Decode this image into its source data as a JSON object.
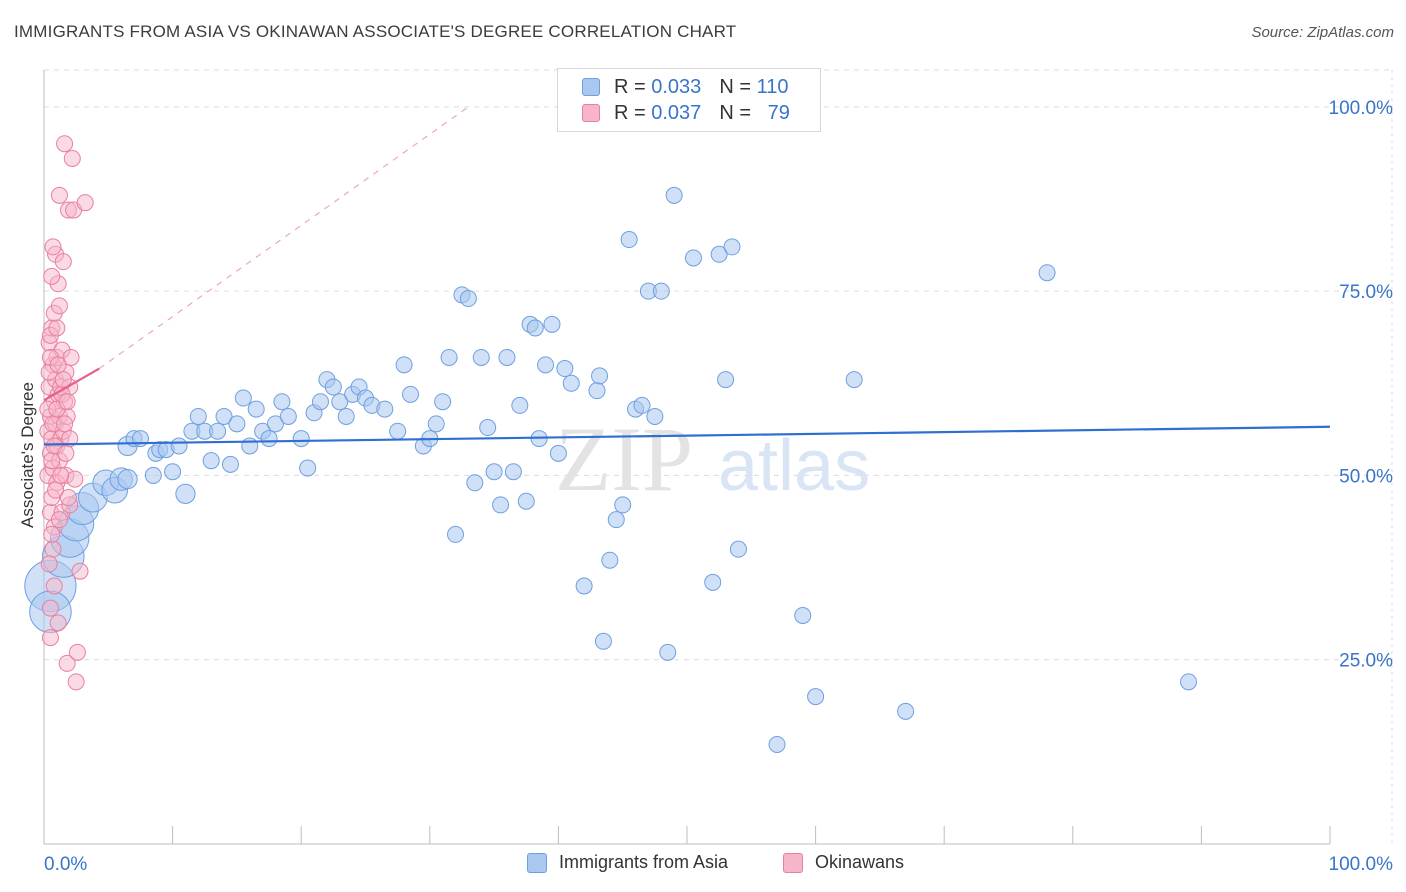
{
  "title": "IMMIGRANTS FROM ASIA VS OKINAWAN ASSOCIATE'S DEGREE CORRELATION CHART",
  "source": "Source: ZipAtlas.com",
  "colors": {
    "blue_fill": "#a9c8f0",
    "blue_stroke": "#6e9fe0",
    "blue_line": "#2e6fd0",
    "pink_fill": "#f5b6c9",
    "pink_stroke": "#ea7fa0",
    "pink_line": "#e8608a",
    "tick_text": "#3a74c9",
    "grid": "#dcdcdc"
  },
  "legend_top": {
    "rows": [
      {
        "series": "Immigrants from Asia",
        "r_label": "R =",
        "r_value": "0.033",
        "n_label": "N =",
        "n_value": "110"
      },
      {
        "series": "Okinawans",
        "r_label": "R =",
        "r_value": "0.037",
        "n_label": "N =",
        "n_value": "79"
      }
    ]
  },
  "legend_bottom": [
    "Immigrants from Asia",
    "Okinawans"
  ],
  "watermark": {
    "zip": "ZIP",
    "atlas": "atlas"
  },
  "chart_data": {
    "type": "scatter",
    "title": "IMMIGRANTS FROM ASIA VS OKINAWAN ASSOCIATE'S DEGREE CORRELATION CHART",
    "xlabel": "",
    "ylabel": "Associate's Degree",
    "xlim": [
      0,
      100
    ],
    "ylim": [
      0,
      105
    ],
    "x_tick_labels": [
      "0.0%",
      "100.0%"
    ],
    "y_ticks": [
      25,
      50,
      75,
      100
    ],
    "y_tick_labels": [
      "25.0%",
      "50.0%",
      "75.0%",
      "100.0%"
    ],
    "grid": true,
    "series": [
      {
        "name": "Immigrants from Asia",
        "R": 0.033,
        "N": 110,
        "trend": {
          "x0": 0,
          "y0": 54.2,
          "x1": 100,
          "y1": 56.6
        },
        "points": [
          [
            0.5,
            35,
            3.2
          ],
          [
            0.5,
            31.5,
            2.6
          ],
          [
            1.5,
            39,
            2.6
          ],
          [
            2,
            41.5,
            2.4
          ],
          [
            2.5,
            43.5,
            2.2
          ],
          [
            3,
            45.5,
            2.0
          ],
          [
            3.8,
            47,
            1.8
          ],
          [
            4.8,
            49,
            1.6
          ],
          [
            5.5,
            48,
            1.6
          ],
          [
            6,
            49.5,
            1.4
          ],
          [
            6.5,
            49.5,
            1.2
          ],
          [
            6.5,
            54,
            1.2
          ],
          [
            7,
            55,
            1.0
          ],
          [
            7.5,
            55,
            1.0
          ],
          [
            8.5,
            50,
            1.0
          ],
          [
            8.7,
            53,
            1.0
          ],
          [
            9,
            53.5,
            1.0
          ],
          [
            9.5,
            53.5,
            1.0
          ],
          [
            10,
            50.5,
            1.0
          ],
          [
            10.5,
            54,
            1.0
          ],
          [
            11,
            47.5,
            1.2
          ],
          [
            11.5,
            56,
            1.0
          ],
          [
            12,
            58,
            1.0
          ],
          [
            12.5,
            56,
            1.0
          ],
          [
            13,
            52,
            1.0
          ],
          [
            13.5,
            56,
            1.0
          ],
          [
            14,
            58,
            1.0
          ],
          [
            14.5,
            51.5,
            1.0
          ],
          [
            15,
            57,
            1.0
          ],
          [
            15.5,
            60.5,
            1.0
          ],
          [
            16,
            54,
            1.0
          ],
          [
            16.5,
            59,
            1.0
          ],
          [
            17,
            56,
            1.0
          ],
          [
            17.5,
            55,
            1.0
          ],
          [
            18,
            57,
            1.0
          ],
          [
            18.5,
            60,
            1.0
          ],
          [
            19,
            58,
            1.0
          ],
          [
            20,
            55,
            1.0
          ],
          [
            20.5,
            51,
            1.0
          ],
          [
            21,
            58.5,
            1.0
          ],
          [
            21.5,
            60,
            1.0
          ],
          [
            22,
            63,
            1.0
          ],
          [
            22.5,
            62,
            1.0
          ],
          [
            23,
            60,
            1.0
          ],
          [
            23.5,
            58,
            1.0
          ],
          [
            24,
            61,
            1.0
          ],
          [
            24.5,
            62,
            1.0
          ],
          [
            25,
            60.5,
            1.0
          ],
          [
            25.5,
            59.5,
            1.0
          ],
          [
            26.5,
            59,
            1.0
          ],
          [
            27.5,
            56,
            1.0
          ],
          [
            28,
            65,
            1.0
          ],
          [
            28.5,
            61,
            1.0
          ],
          [
            29.5,
            54,
            1.0
          ],
          [
            30,
            55,
            1.0
          ],
          [
            30.5,
            57,
            1.0
          ],
          [
            31,
            60,
            1.0
          ],
          [
            31.5,
            66,
            1.0
          ],
          [
            32,
            42,
            1.0
          ],
          [
            32.5,
            74.5,
            1.0
          ],
          [
            33,
            74,
            1.0
          ],
          [
            33.5,
            49,
            1.0
          ],
          [
            34,
            66,
            1.0
          ],
          [
            34.5,
            56.5,
            1.0
          ],
          [
            35,
            50.5,
            1.0
          ],
          [
            35.5,
            46,
            1.0
          ],
          [
            36,
            66,
            1.0
          ],
          [
            36.5,
            50.5,
            1.0
          ],
          [
            37,
            59.5,
            1.0
          ],
          [
            37.5,
            46.5,
            1.0
          ],
          [
            37.8,
            70.5,
            1.0
          ],
          [
            38.2,
            70,
            1.0
          ],
          [
            38.5,
            55,
            1.0
          ],
          [
            39,
            65,
            1.0
          ],
          [
            39.5,
            70.5,
            1.0
          ],
          [
            40,
            53,
            1.0
          ],
          [
            40.5,
            64.5,
            1.0
          ],
          [
            41,
            62.5,
            1.0
          ],
          [
            42,
            35,
            1.0
          ],
          [
            43,
            61.5,
            1.0
          ],
          [
            43.2,
            63.5,
            1.0
          ],
          [
            43.5,
            27.5,
            1.0
          ],
          [
            44,
            38.5,
            1.0
          ],
          [
            44.5,
            44,
            1.0
          ],
          [
            45,
            46,
            1.0
          ],
          [
            45.5,
            82,
            1.0
          ],
          [
            46,
            59,
            1.0
          ],
          [
            46.5,
            59.5,
            1.0
          ],
          [
            47,
            75,
            1.0
          ],
          [
            47.5,
            58,
            1.0
          ],
          [
            48,
            75,
            1.0
          ],
          [
            48.5,
            26,
            1.0
          ],
          [
            49,
            88,
            1.0
          ],
          [
            50.5,
            79.5,
            1.0
          ],
          [
            52,
            35.5,
            1.0
          ],
          [
            52.5,
            80,
            1.0
          ],
          [
            53,
            63,
            1.0
          ],
          [
            53.5,
            81,
            1.0
          ],
          [
            54,
            40,
            1.0
          ],
          [
            57,
            13.5,
            1.0
          ],
          [
            59,
            31,
            1.0
          ],
          [
            60,
            20,
            1.0
          ],
          [
            63,
            63,
            1.0
          ],
          [
            67,
            18,
            1.0
          ],
          [
            78,
            77.5,
            1.0
          ],
          [
            89,
            22,
            1.0
          ]
        ]
      },
      {
        "name": "Okinawans",
        "R": 0.037,
        "N": 79,
        "trend": {
          "x0": 0,
          "y0": 60.2,
          "x1": 4.3,
          "y1": 64.5
        },
        "trend_dashed": {
          "x0": 4.3,
          "y0": 64.5,
          "x1": 33,
          "y1": 100
        },
        "points": [
          [
            0.3,
            56,
            1.0
          ],
          [
            0.3,
            50,
            1.0
          ],
          [
            0.4,
            62,
            1.0
          ],
          [
            0.4,
            68,
            1.0
          ],
          [
            0.5,
            45,
            1.0
          ],
          [
            0.5,
            53,
            1.0
          ],
          [
            0.5,
            58,
            1.0
          ],
          [
            0.6,
            70,
            1.0
          ],
          [
            0.6,
            55,
            1.0
          ],
          [
            0.6,
            47,
            1.0
          ],
          [
            0.7,
            40,
            1.0
          ],
          [
            0.7,
            65,
            1.0
          ],
          [
            0.7,
            51,
            1.0
          ],
          [
            0.8,
            60,
            1.0
          ],
          [
            0.8,
            72,
            1.0
          ],
          [
            0.8,
            43,
            1.0
          ],
          [
            0.9,
            57,
            1.0
          ],
          [
            0.9,
            63,
            1.0
          ],
          [
            0.9,
            80,
            1.0
          ],
          [
            1.0,
            54,
            1.0
          ],
          [
            1.0,
            49,
            1.0
          ],
          [
            1.0,
            66,
            1.0
          ],
          [
            1.1,
            61,
            1.0
          ],
          [
            1.1,
            76,
            1.0
          ],
          [
            1.1,
            30,
            1.0
          ],
          [
            1.2,
            58,
            1.0
          ],
          [
            1.2,
            52,
            1.0
          ],
          [
            1.2,
            88,
            1.0
          ],
          [
            1.3,
            62,
            1.0
          ],
          [
            1.3,
            55,
            1.0
          ],
          [
            1.4,
            67,
            1.0
          ],
          [
            1.4,
            45,
            1.0
          ],
          [
            1.5,
            56,
            1.0
          ],
          [
            1.5,
            79,
            1.0
          ],
          [
            1.6,
            60,
            1.0
          ],
          [
            1.6,
            95,
            1.0
          ],
          [
            1.7,
            64,
            1.0
          ],
          [
            1.7,
            50,
            1.0
          ],
          [
            1.8,
            58,
            1.0
          ],
          [
            1.8,
            24.5,
            1.0
          ],
          [
            1.9,
            86,
            1.0
          ],
          [
            2.0,
            62,
            1.0
          ],
          [
            2.0,
            46,
            1.0
          ],
          [
            2.1,
            66,
            1.0
          ],
          [
            2.2,
            93,
            1.0
          ],
          [
            2.3,
            86,
            1.0
          ],
          [
            2.4,
            49.5,
            1.0
          ],
          [
            2.5,
            22,
            1.0
          ],
          [
            2.6,
            26,
            1.0
          ],
          [
            2.8,
            37,
            1.0
          ],
          [
            3.2,
            87,
            1.0
          ],
          [
            0.5,
            28,
            1.0
          ],
          [
            0.5,
            32,
            1.0
          ],
          [
            0.6,
            77,
            1.0
          ],
          [
            0.7,
            81,
            1.0
          ],
          [
            0.3,
            59,
            1.0
          ],
          [
            0.4,
            64,
            1.0
          ],
          [
            0.5,
            66,
            1.0
          ],
          [
            0.5,
            69,
            1.0
          ],
          [
            0.6,
            52,
            1.0
          ],
          [
            0.7,
            57,
            1.0
          ],
          [
            0.8,
            54,
            1.0
          ],
          [
            0.9,
            48,
            1.0
          ],
          [
            1.0,
            59,
            1.0
          ],
          [
            1.1,
            65,
            1.0
          ],
          [
            1.2,
            44,
            1.0
          ],
          [
            1.3,
            50,
            1.0
          ],
          [
            1.4,
            61,
            1.0
          ],
          [
            1.5,
            63,
            1.0
          ],
          [
            1.6,
            57,
            1.0
          ],
          [
            1.7,
            53,
            1.0
          ],
          [
            1.8,
            60,
            1.0
          ],
          [
            1.9,
            47,
            1.0
          ],
          [
            2.0,
            55,
            1.0
          ],
          [
            0.4,
            38,
            1.0
          ],
          [
            0.6,
            42,
            1.0
          ],
          [
            0.8,
            35,
            1.0
          ],
          [
            1.0,
            70,
            1.0
          ],
          [
            1.2,
            73,
            1.0
          ]
        ]
      }
    ]
  }
}
